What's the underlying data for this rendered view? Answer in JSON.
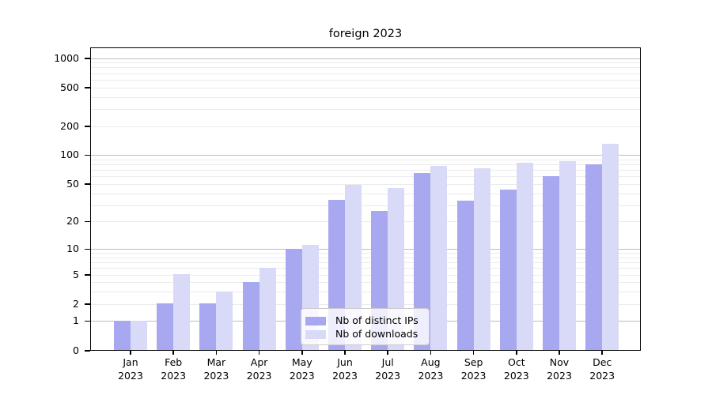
{
  "title": "foreign 2023",
  "x_year": "2023",
  "chart_data": {
    "type": "bar",
    "title": "foreign 2023",
    "yscale": "log1p",
    "ylim": [
      0,
      1280
    ],
    "grid": true,
    "legend_position": "lower center",
    "categories": [
      "Jan",
      "Feb",
      "Mar",
      "Apr",
      "May",
      "Jun",
      "Jul",
      "Aug",
      "Sep",
      "Oct",
      "Nov",
      "Dec"
    ],
    "categories_year": "2023",
    "series": [
      {
        "name": "Nb of distinct IPs",
        "color": "#a8a8f0",
        "values": [
          1,
          2,
          2,
          4,
          10,
          34,
          26,
          65,
          33,
          43,
          60,
          80
        ]
      },
      {
        "name": "Nb of downloads",
        "color": "#d9d9f8",
        "values": [
          1,
          5,
          3,
          6,
          11,
          49,
          45,
          76,
          72,
          82,
          86,
          130
        ]
      }
    ],
    "yticks": [
      {
        "v": 0,
        "label": "0"
      },
      {
        "v": 1,
        "label": "1"
      },
      {
        "v": 2,
        "label": "2"
      },
      {
        "v": 5,
        "label": "5"
      },
      {
        "v": 10,
        "label": "10"
      },
      {
        "v": 20,
        "label": "20"
      },
      {
        "v": 50,
        "label": "50"
      },
      {
        "v": 100,
        "label": "100"
      },
      {
        "v": 200,
        "label": "200"
      },
      {
        "v": 500,
        "label": "500"
      },
      {
        "v": 1000,
        "label": "1000"
      }
    ]
  },
  "colors": {
    "major_grid": "#bdbdbd",
    "minor_grid": "#ebebeb",
    "axis": "#000000",
    "background": "#ffffff"
  }
}
